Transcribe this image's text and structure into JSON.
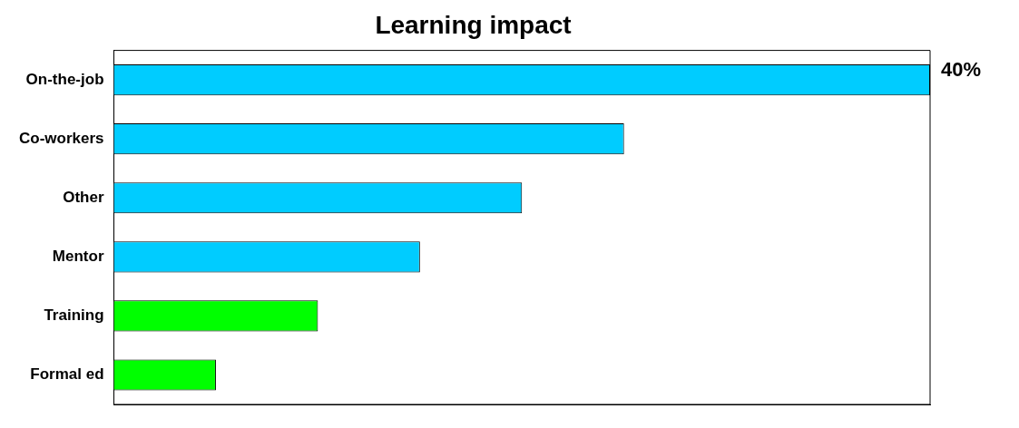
{
  "chart_data": {
    "type": "bar",
    "orientation": "horizontal",
    "title": "Learning impact",
    "categories": [
      "On-the-job",
      "Co-workers",
      "Other",
      "Mentor",
      "Training",
      "Formal ed"
    ],
    "values": [
      40,
      25,
      20,
      15,
      10,
      5
    ],
    "colors": [
      "#00ccff",
      "#00ccff",
      "#00ccff",
      "#00ccff",
      "#00ff00",
      "#00ff00"
    ],
    "value_labels": [
      "40%",
      null,
      null,
      null,
      null,
      null
    ],
    "grid": false,
    "legend": false
  }
}
